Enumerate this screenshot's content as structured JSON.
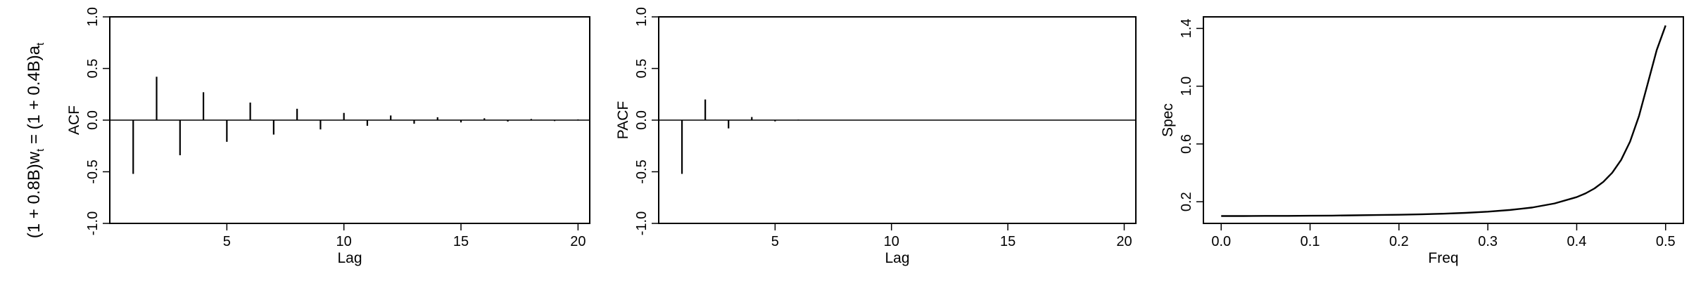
{
  "figure": {
    "side_label": "(1 + 0.8B)w",
    "side_label_sub1": "t",
    "side_label_mid": " = (1 + 0.4B)a",
    "side_label_sub2": "t"
  },
  "chart_data": [
    {
      "type": "bar",
      "ylabel": "ACF",
      "xlabel": "Lag",
      "xlim": [
        0,
        20.5
      ],
      "ylim": [
        -1.0,
        1.0
      ],
      "xticks": [
        5,
        10,
        15,
        20
      ],
      "yticks": [
        -1.0,
        -0.5,
        0.0,
        0.5,
        1.0
      ],
      "ytick_labels": [
        "-1.0",
        "-0.5",
        "0.0",
        "0.5",
        "1.0"
      ],
      "zero_line": true,
      "x": [
        1,
        2,
        3,
        4,
        5,
        6,
        7,
        8,
        9,
        10,
        11,
        12,
        13,
        14,
        15,
        16,
        17,
        18,
        19,
        20
      ],
      "values": [
        -0.52,
        0.42,
        -0.34,
        0.27,
        -0.21,
        0.17,
        -0.14,
        0.11,
        -0.09,
        0.07,
        -0.055,
        0.045,
        -0.035,
        0.028,
        -0.022,
        0.018,
        -0.014,
        0.011,
        -0.009,
        0.007
      ]
    },
    {
      "type": "bar",
      "ylabel": "PACF",
      "xlabel": "Lag",
      "xlim": [
        0,
        20.5
      ],
      "ylim": [
        -1.0,
        1.0
      ],
      "xticks": [
        5,
        10,
        15,
        20
      ],
      "yticks": [
        -1.0,
        -0.5,
        0.0,
        0.5,
        1.0
      ],
      "ytick_labels": [
        "-1.0",
        "-0.5",
        "0.0",
        "0.5",
        "1.0"
      ],
      "zero_line": true,
      "x": [
        1,
        2,
        3,
        4,
        5,
        6,
        7,
        8,
        9,
        10,
        11,
        12,
        13,
        14,
        15,
        16,
        17,
        18,
        19,
        20
      ],
      "values": [
        -0.52,
        0.2,
        -0.08,
        0.03,
        -0.012,
        0.005,
        -0.002,
        0.001,
        0,
        0,
        0,
        0,
        0,
        0,
        0,
        0,
        0,
        0,
        0,
        0
      ]
    },
    {
      "type": "line",
      "ylabel": "Spec",
      "xlabel": "Freq",
      "xlim": [
        -0.02,
        0.52
      ],
      "ylim": [
        0.05,
        1.48
      ],
      "xticks": [
        0.0,
        0.1,
        0.2,
        0.3,
        0.4,
        0.5
      ],
      "xtick_labels": [
        "0.0",
        "0.1",
        "0.2",
        "0.3",
        "0.4",
        "0.5"
      ],
      "yticks": [
        0.2,
        0.6,
        1.0,
        1.4
      ],
      "ytick_labels": [
        "0.2",
        "0.6",
        "1.0",
        "1.4"
      ],
      "x": [
        0,
        0.025,
        0.05,
        0.075,
        0.1,
        0.125,
        0.15,
        0.175,
        0.2,
        0.225,
        0.25,
        0.275,
        0.3,
        0.325,
        0.35,
        0.375,
        0.4,
        0.41,
        0.42,
        0.43,
        0.44,
        0.45,
        0.46,
        0.47,
        0.48,
        0.49,
        0.5
      ],
      "y": [
        0.101,
        0.101,
        0.102,
        0.102,
        0.103,
        0.104,
        0.106,
        0.108,
        0.11,
        0.113,
        0.117,
        0.123,
        0.131,
        0.143,
        0.16,
        0.188,
        0.232,
        0.258,
        0.292,
        0.338,
        0.401,
        0.49,
        0.616,
        0.792,
        1.02,
        1.25,
        1.42
      ]
    }
  ]
}
